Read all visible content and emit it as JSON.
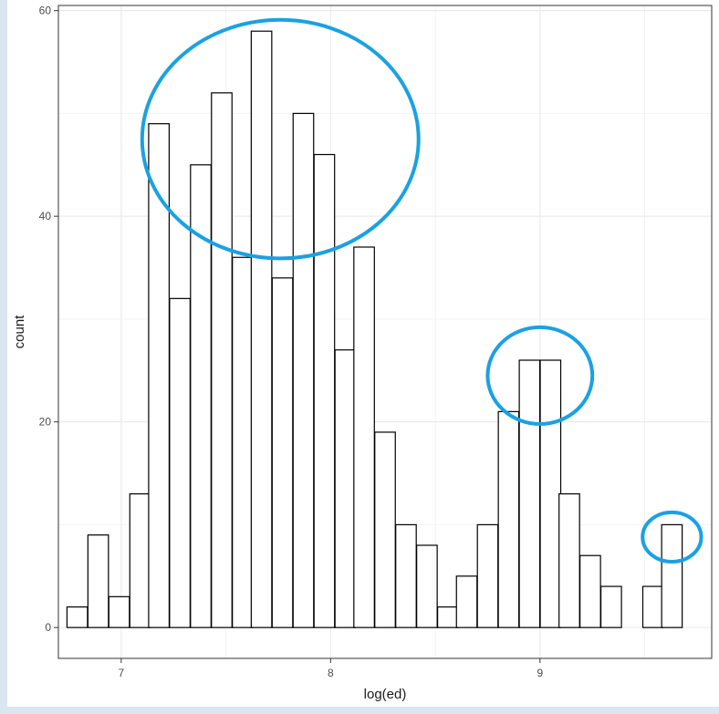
{
  "chart_data": {
    "type": "bar",
    "subtype": "histogram",
    "xlabel": "log(ed)",
    "ylabel": "count",
    "xlim": [
      6.7,
      9.82
    ],
    "ylim": [
      -3,
      60.5
    ],
    "x_ticks": [
      7,
      8,
      9
    ],
    "y_ticks": [
      0,
      20,
      40,
      60
    ],
    "grid": true,
    "theme": "bw",
    "bar_fill": "#ffffff",
    "bar_outline": "#000000",
    "bin_width": 0.098,
    "bins": [
      {
        "x": 6.79,
        "count": 2
      },
      {
        "x": 6.89,
        "count": 9
      },
      {
        "x": 6.99,
        "count": 3
      },
      {
        "x": 7.09,
        "count": 13
      },
      {
        "x": 7.18,
        "count": 49
      },
      {
        "x": 7.28,
        "count": 32
      },
      {
        "x": 7.38,
        "count": 45
      },
      {
        "x": 7.48,
        "count": 52
      },
      {
        "x": 7.58,
        "count": 36
      },
      {
        "x": 7.67,
        "count": 58
      },
      {
        "x": 7.77,
        "count": 34
      },
      {
        "x": 7.87,
        "count": 50
      },
      {
        "x": 7.97,
        "count": 46
      },
      {
        "x": 8.07,
        "count": 27
      },
      {
        "x": 8.16,
        "count": 37
      },
      {
        "x": 8.26,
        "count": 19
      },
      {
        "x": 8.36,
        "count": 10
      },
      {
        "x": 8.46,
        "count": 8
      },
      {
        "x": 8.56,
        "count": 2
      },
      {
        "x": 8.65,
        "count": 5
      },
      {
        "x": 8.75,
        "count": 10
      },
      {
        "x": 8.85,
        "count": 21
      },
      {
        "x": 8.95,
        "count": 26
      },
      {
        "x": 9.05,
        "count": 26
      },
      {
        "x": 9.14,
        "count": 13
      },
      {
        "x": 9.24,
        "count": 7
      },
      {
        "x": 9.34,
        "count": 4
      },
      {
        "x": 9.44,
        "count": 0
      },
      {
        "x": 9.54,
        "count": 4
      },
      {
        "x": 9.63,
        "count": 10
      }
    ],
    "annotations": [
      {
        "type": "ellipse",
        "color": "#1ba1e2",
        "cx": 7.76,
        "cy": 47.5,
        "rx": 0.66,
        "ry": 11.6
      },
      {
        "type": "ellipse",
        "color": "#1ba1e2",
        "cx": 9.0,
        "cy": 24.5,
        "rx": 0.25,
        "ry": 4.7
      },
      {
        "type": "ellipse",
        "color": "#1ba1e2",
        "cx": 9.63,
        "cy": 8.8,
        "rx": 0.14,
        "ry": 2.4
      }
    ]
  }
}
